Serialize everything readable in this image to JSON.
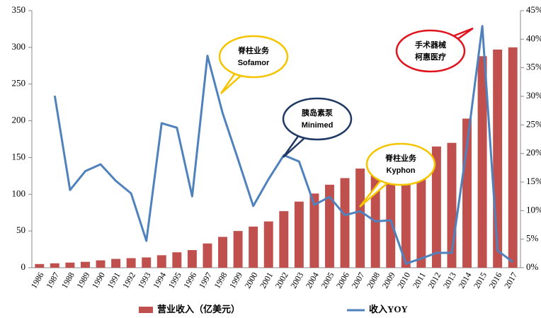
{
  "chart_data": {
    "type": "bar-line",
    "categories": [
      "1986",
      "1987",
      "1988",
      "1989",
      "1990",
      "1991",
      "1992",
      "1993",
      "1994",
      "1995",
      "1996",
      "1997",
      "1998",
      "1999",
      "2000",
      "2001",
      "2002",
      "2003",
      "2004",
      "2005",
      "2006",
      "2007",
      "2008",
      "2009",
      "2010",
      "2011",
      "2012",
      "2013",
      "2014",
      "2015",
      "2016",
      "2017"
    ],
    "series": [
      {
        "name": "营业收入（亿美元）",
        "type": "bar",
        "color": "#c0504d",
        "axis": "y",
        "values": [
          5,
          6,
          7,
          8,
          10,
          12,
          13,
          14,
          17,
          21,
          24,
          33,
          42,
          50,
          56,
          63,
          77,
          90,
          101,
          113,
          122,
          135,
          146,
          158,
          159,
          161,
          165,
          170,
          203,
          288,
          297,
          300
        ]
      },
      {
        "name": "收入YOY",
        "type": "line",
        "color": "#4f81bd",
        "axis": "y2",
        "values": [
          null,
          30.1,
          13.6,
          16.9,
          18.1,
          15.2,
          13.0,
          4.7,
          25.3,
          24.5,
          12.5,
          37.1,
          27.0,
          19.0,
          10.8,
          15.5,
          19.7,
          18.6,
          11.0,
          12.4,
          9.2,
          9.9,
          8.1,
          8.3,
          0.7,
          1.6,
          2.6,
          2.6,
          21.4,
          42.3,
          3.0,
          1.0
        ]
      }
    ],
    "ylim": [
      0,
      350
    ],
    "yticks": [
      0,
      50,
      100,
      150,
      200,
      250,
      300,
      350
    ],
    "y2lim": [
      0,
      45
    ],
    "y2ticks": [
      {
        "value": 0,
        "label": "0%"
      },
      {
        "value": 5,
        "label": "5%"
      },
      {
        "value": 10,
        "label": "10%"
      },
      {
        "value": 15,
        "label": "15%"
      },
      {
        "value": 20,
        "label": "20%"
      },
      {
        "value": 25,
        "label": "25%"
      },
      {
        "value": 30,
        "label": "30%"
      },
      {
        "value": 35,
        "label": "35%"
      },
      {
        "value": 40,
        "label": "40%"
      },
      {
        "value": 45,
        "label": "45%"
      }
    ],
    "annotations": [
      {
        "lines": [
          "脊柱业务",
          "Sofamor"
        ],
        "color": "#f5c400"
      },
      {
        "lines": [
          "胰岛素泵",
          "Minimed"
        ],
        "color": "#1f3864"
      },
      {
        "lines": [
          "脊柱业务",
          "Kyphon"
        ],
        "color": "#f5c400"
      },
      {
        "lines": [
          "手术器械",
          "柯惠医疗"
        ],
        "color": "#e0141e"
      }
    ]
  }
}
